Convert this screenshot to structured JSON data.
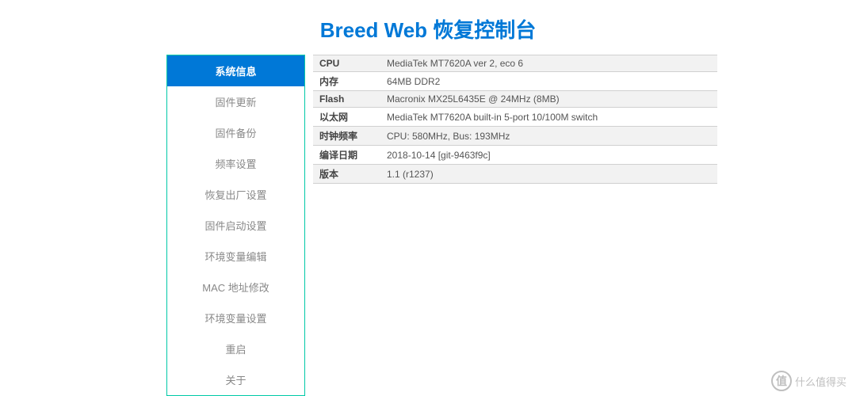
{
  "title": "Breed Web 恢复控制台",
  "colors": {
    "title_color": "#0078d7",
    "sidebar_border": "#00c9a7",
    "active_bg": "#0078d7",
    "active_text": "#ffffff",
    "inactive_text": "#888888",
    "row_odd_bg": "#f2f2f2",
    "row_even_bg": "#ffffff",
    "row_border": "#d0d0d0",
    "watermark_color": "#bfbfbf"
  },
  "sidebar": {
    "items": [
      {
        "label": "系统信息",
        "active": true
      },
      {
        "label": "固件更新",
        "active": false
      },
      {
        "label": "固件备份",
        "active": false
      },
      {
        "label": "频率设置",
        "active": false
      },
      {
        "label": "恢复出厂设置",
        "active": false
      },
      {
        "label": "固件启动设置",
        "active": false
      },
      {
        "label": "环境变量编辑",
        "active": false
      },
      {
        "label": "MAC 地址修改",
        "active": false
      },
      {
        "label": "环境变量设置",
        "active": false
      },
      {
        "label": "重启",
        "active": false
      },
      {
        "label": "关于",
        "active": false
      }
    ]
  },
  "info": {
    "rows": [
      {
        "label": "CPU",
        "value": "MediaTek MT7620A ver 2, eco 6"
      },
      {
        "label": "内存",
        "value": "64MB DDR2"
      },
      {
        "label": "Flash",
        "value": "Macronix MX25L6435E @ 24MHz (8MB)"
      },
      {
        "label": "以太网",
        "value": "MediaTek MT7620A built-in 5-port 10/100M switch"
      },
      {
        "label": "时钟频率",
        "value": "CPU: 580MHz, Bus: 193MHz"
      },
      {
        "label": "编译日期",
        "value": "2018-10-14 [git-9463f9c]"
      },
      {
        "label": "版本",
        "value": "1.1 (r1237)"
      }
    ]
  },
  "watermark": {
    "symbol": "值",
    "text": "什么值得买"
  }
}
